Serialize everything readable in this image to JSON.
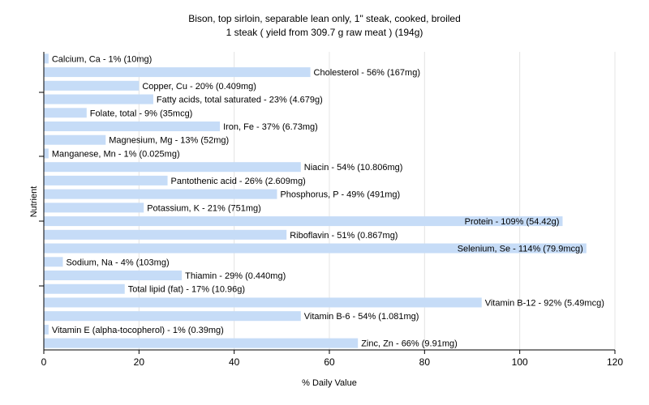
{
  "chart_data": {
    "type": "bar",
    "orientation": "horizontal",
    "title": "Bison, top sirloin, separable lean only, 1\" steak, cooked, broiled",
    "subtitle": "1 steak ( yield from 309.7 g raw meat ) (194g)",
    "xlabel": "% Daily Value",
    "ylabel": "Nutrient",
    "xlim": [
      0,
      120
    ],
    "xticks": [
      0,
      20,
      40,
      60,
      80,
      100,
      120
    ],
    "grid": true,
    "bar_color": "#c6dcf7",
    "grid_color": "#e4e4e4",
    "categories": [
      "Calcium, Ca",
      "Cholesterol",
      "Copper, Cu",
      "Fatty acids, total saturated",
      "Folate, total",
      "Iron, Fe",
      "Magnesium, Mg",
      "Manganese, Mn",
      "Niacin",
      "Pantothenic acid",
      "Phosphorus, P",
      "Potassium, K",
      "Protein",
      "Riboflavin",
      "Selenium, Se",
      "Sodium, Na",
      "Thiamin",
      "Total lipid (fat)",
      "Vitamin B-12",
      "Vitamin B-6",
      "Vitamin E (alpha-tocopherol)",
      "Zinc, Zn"
    ],
    "values": [
      1,
      56,
      20,
      23,
      9,
      37,
      13,
      1,
      54,
      26,
      49,
      21,
      109,
      51,
      114,
      4,
      29,
      17,
      92,
      54,
      1,
      66
    ],
    "labels": [
      "Calcium, Ca - 1% (10mg)",
      "Cholesterol - 56% (167mg)",
      "Copper, Cu - 20% (0.409mg)",
      "Fatty acids, total saturated - 23% (4.679g)",
      "Folate, total - 9% (35mcg)",
      "Iron, Fe - 37% (6.73mg)",
      "Magnesium, Mg - 13% (52mg)",
      "Manganese, Mn - 1% (0.025mg)",
      "Niacin - 54% (10.806mg)",
      "Pantothenic acid - 26% (2.609mg)",
      "Phosphorus, P - 49% (491mg)",
      "Potassium, K - 21% (751mg)",
      "Protein - 109% (54.42g)",
      "Riboflavin - 51% (0.867mg)",
      "Selenium, Se - 114% (79.9mcg)",
      "Sodium, Na - 4% (103mg)",
      "Thiamin - 29% (0.440mg)",
      "Total lipid (fat) - 17% (10.96g)",
      "Vitamin B-12 - 92% (5.49mcg)",
      "Vitamin B-6 - 54% (1.081mg)",
      "Vitamin E (alpha-tocopherol) - 1% (0.39mg)",
      "Zinc, Zn - 66% (9.91mg)"
    ]
  }
}
